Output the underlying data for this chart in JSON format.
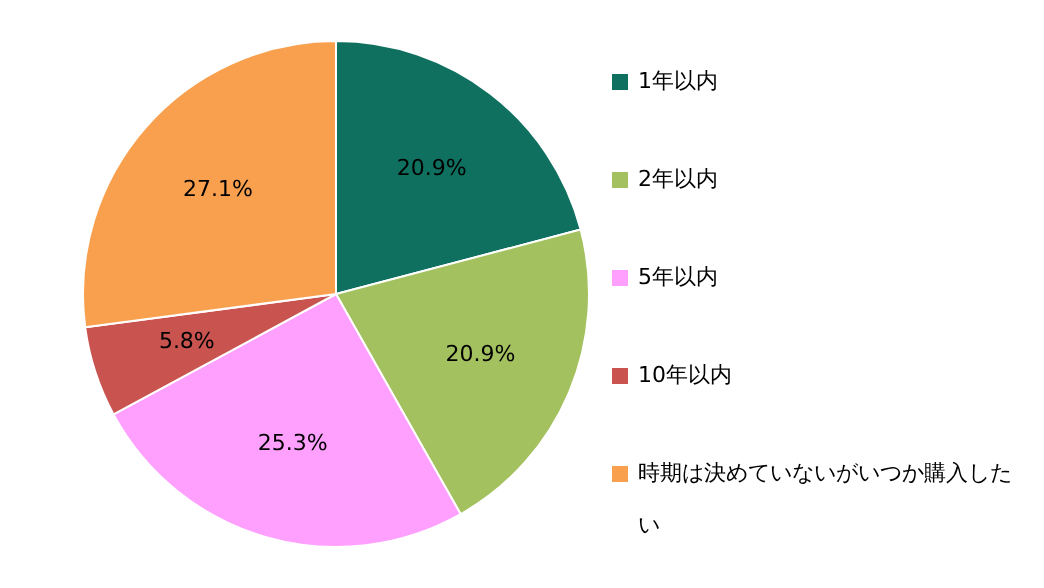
{
  "chart_data": {
    "type": "pie",
    "categories": [
      "1年以内",
      "2年以内",
      "5年以内",
      "10年以内",
      "時期は決めていないがいつか購入したい"
    ],
    "values": [
      20.9,
      20.9,
      25.3,
      5.8,
      27.1
    ],
    "value_labels": [
      "20.9%",
      "20.9%",
      "25.3%",
      "5.8%",
      "27.1%"
    ],
    "colors": [
      "#0f7060",
      "#a3c15f",
      "#ffa0ff",
      "#c9534f",
      "#f9a04e"
    ],
    "legend": "right"
  }
}
